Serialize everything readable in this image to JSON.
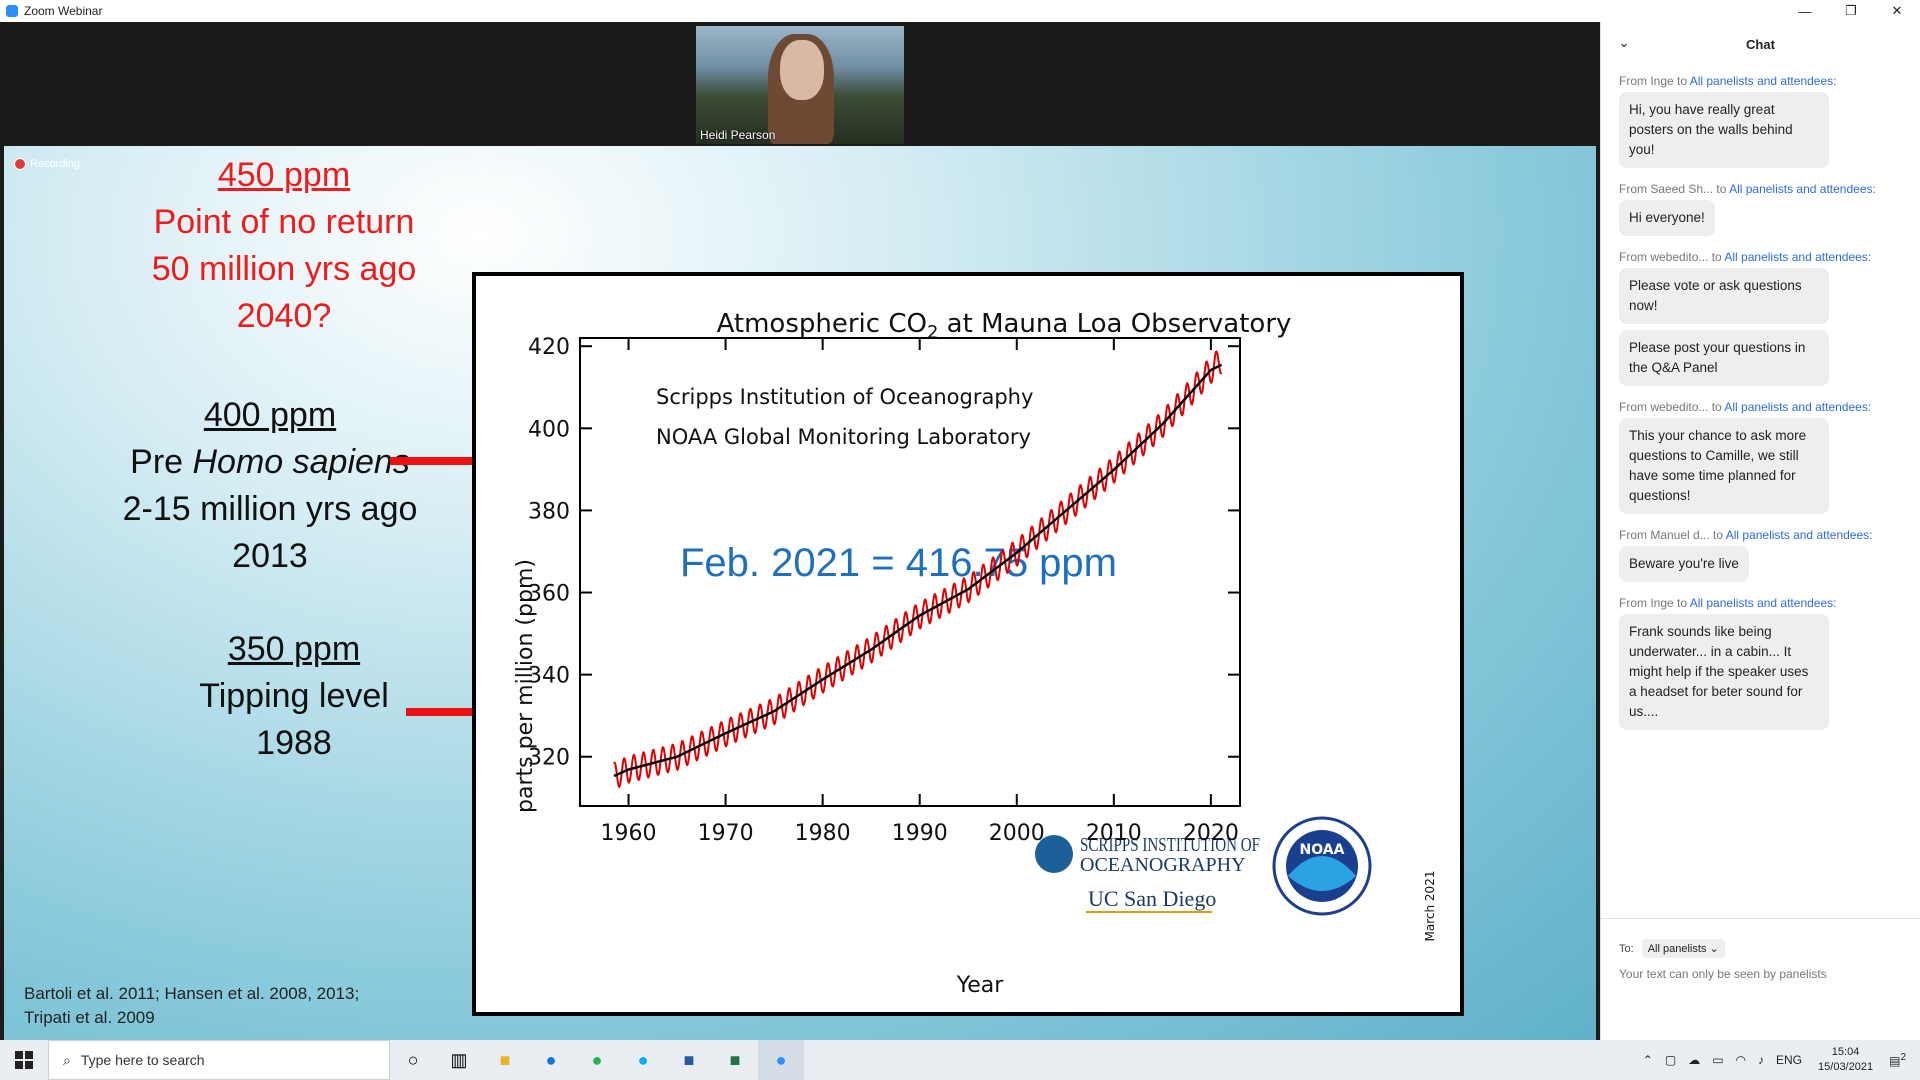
{
  "window": {
    "title": "Zoom Webinar",
    "controls": [
      "—",
      "❐",
      "✕"
    ]
  },
  "speaker": {
    "name": "Heidi Pearson"
  },
  "recording": {
    "label": "Recording"
  },
  "slide": {
    "block450": {
      "heading": "450 ppm",
      "line1": "Point of no return",
      "line2": "50 million yrs ago",
      "line3": "2040?"
    },
    "block400": {
      "heading": "400 ppm",
      "line1_pre": "Pre ",
      "line1_em": "Homo sapiens",
      "line2": "2-15 million yrs ago",
      "line3": "2013"
    },
    "block350": {
      "heading": "350 ppm",
      "line1": "Tipping level",
      "line2": "1988"
    },
    "refs": {
      "line1": "Bartoli et al. 2011; Hansen et al. 2008, 2013;",
      "line2": "Tripati et al. 2009"
    },
    "colors": {
      "annotation_red": "#ee1c1c",
      "arrow_red": "#ee1111",
      "callout_blue": "#1f6fbf"
    }
  },
  "chart_data": {
    "type": "line",
    "title_main": "Atmospheric CO",
    "title_sub": "2",
    "title_rest": " at Mauna Loa Observatory",
    "source1": "Scripps Institution of Oceanography",
    "source2": "NOAA Global Monitoring Laboratory",
    "callout": "Feb. 2021 = 416.75 ppm",
    "xlabel": "Year",
    "ylabel": "parts per million (ppm)",
    "date_note": "March 2021",
    "logo_scripps_1": "SCRIPPS INSTITUTION OF",
    "logo_scripps_2": "OCEANOGRAPHY",
    "logo_ucsd": "UC San Diego",
    "logo_noaa": "NOAA",
    "xlim": [
      1955,
      2023
    ],
    "ylim": [
      308,
      422
    ],
    "xticks": [
      1960,
      1970,
      1980,
      1990,
      2000,
      2010,
      2020
    ],
    "yticks": [
      320,
      340,
      360,
      380,
      400,
      420
    ],
    "series": [
      {
        "color": "#e00000",
        "x": [
          1958.5,
          1960,
          1965,
          1970,
          1975,
          1980,
          1985,
          1990,
          1995,
          2000,
          2005,
          2010,
          2015,
          2020,
          2021.1
        ],
        "values": [
          315.3,
          316.9,
          320.0,
          325.7,
          331.1,
          338.8,
          346.1,
          354.4,
          360.8,
          369.7,
          379.8,
          389.9,
          401.0,
          414.2,
          416.75
        ]
      },
      {
        "color": "#000000",
        "x": [
          1958.5,
          1960,
          1965,
          1970,
          1975,
          1980,
          1985,
          1990,
          1995,
          2000,
          2005,
          2010,
          2015,
          2020,
          2021.1
        ],
        "values": [
          315.3,
          316.9,
          320.0,
          325.7,
          331.1,
          338.8,
          346.1,
          354.4,
          360.8,
          369.7,
          379.8,
          389.9,
          401.0,
          414.2,
          415.5
        ]
      }
    ],
    "seasonal_amplitude": 3.2,
    "grid": false
  },
  "chat": {
    "title": "Chat",
    "messages": [
      {
        "from": "From Inge to ",
        "to": "All panelists and attendees:",
        "bubbles": [
          "Hi, you have really great posters on the walls behind you!"
        ]
      },
      {
        "from": "From Saeed Sh...  to ",
        "to": "All panelists and attendees:",
        "bubbles": [
          "Hi everyone!"
        ]
      },
      {
        "from": "From webedito...  to ",
        "to": "All panelists and attendees:",
        "bubbles": [
          "Please vote or ask questions now!",
          "Please post your questions in the Q&A Panel"
        ]
      },
      {
        "from": "From webedito...  to ",
        "to": "All panelists and attendees:",
        "bubbles": [
          "This your chance to ask more questions to Camille, we still have some time planned for questions!"
        ]
      },
      {
        "from": "From Manuel d...  to ",
        "to": "All panelists and attendees:",
        "bubbles": [
          "Beware you're live"
        ]
      },
      {
        "from": "From Inge to ",
        "to": "All panelists and attendees:",
        "bubbles": [
          "Frank sounds like being underwater... in a cabin... It might help if the speaker uses a headset for beter sound for us...."
        ]
      }
    ],
    "to_label": "To:",
    "to_value": "All panelists",
    "hint": "Your text can only be seen by panelists"
  },
  "taskbar": {
    "search_placeholder": "Type here to search",
    "lang": "ENG",
    "time": "15:04",
    "date": "15/03/2021",
    "notif_count": "2"
  }
}
